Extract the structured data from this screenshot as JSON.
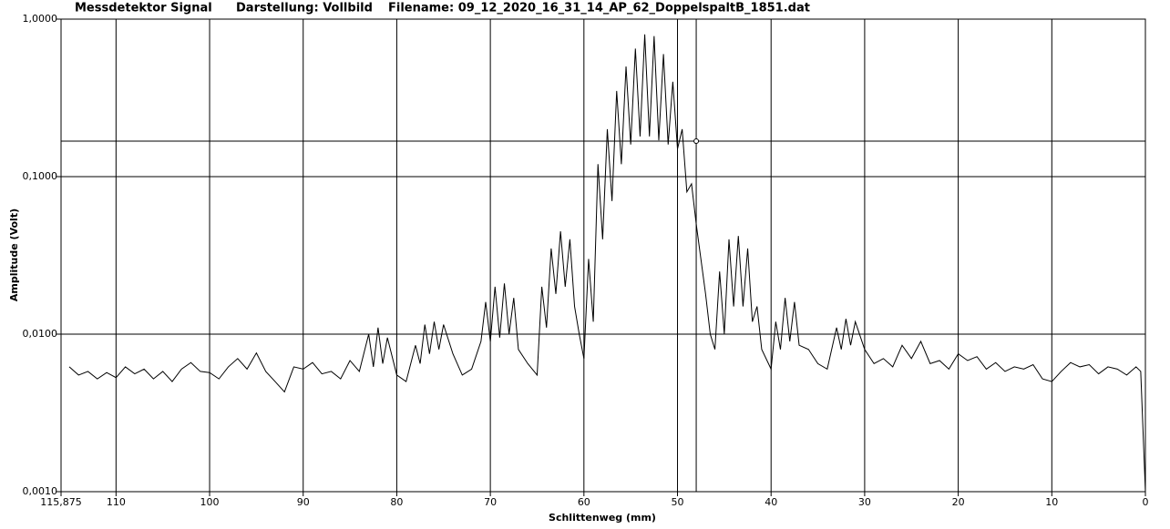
{
  "chart_data": {
    "type": "line",
    "header": [
      "Messdetektor Signal",
      "Darstellung: Vollbild",
      "Filename: 09_12_2020_16_31_14_AP_62_DoppelspaltB_1851.dat"
    ],
    "xlabel": "Schlittenweg (mm)",
    "ylabel": "Amplitude (Volt)",
    "xlim": [
      115.875,
      0
    ],
    "ylim": [
      0.001,
      1
    ],
    "log_y": true,
    "grid": true,
    "xticks": [
      {
        "value": 115.875,
        "label": "115,875"
      },
      110,
      100,
      90,
      80,
      70,
      60,
      50,
      40,
      30,
      20,
      10,
      0
    ],
    "yticks": [
      {
        "value": 0.001,
        "label": "0,0010"
      },
      {
        "value": 0.01,
        "label": "0,0100"
      },
      {
        "value": 0.1,
        "label": "0,1000"
      },
      {
        "value": 1,
        "label": "1,0000"
      }
    ],
    "cursor": {
      "x": 48,
      "y": 0.168
    },
    "x": [
      115,
      114,
      113,
      112,
      111,
      110,
      109,
      108,
      107,
      106,
      105,
      104,
      103,
      102,
      101,
      100,
      99,
      98,
      97,
      96,
      95,
      94,
      93,
      92,
      91,
      90,
      89,
      88,
      87,
      86,
      85,
      84,
      83,
      82.5,
      82,
      81.5,
      81,
      80,
      79,
      78,
      77.5,
      77,
      76.5,
      76,
      75.5,
      75,
      74,
      73,
      72,
      71,
      70.5,
      70,
      69.5,
      69,
      68.5,
      68,
      67.5,
      67,
      66,
      65,
      64.5,
      64,
      63.5,
      63,
      62.5,
      62,
      61.5,
      61,
      60.5,
      60,
      59.5,
      59,
      58.5,
      58,
      57.5,
      57,
      56.5,
      56,
      55.5,
      55,
      54.5,
      54,
      53.5,
      53,
      52.5,
      52,
      51.5,
      51,
      50.5,
      50,
      49.5,
      49,
      48.5,
      48,
      47.5,
      47,
      46.5,
      46,
      45.5,
      45,
      44.5,
      44,
      43.5,
      43,
      42.5,
      42,
      41.5,
      41,
      40,
      39.5,
      39,
      38.5,
      38,
      37.5,
      37,
      36,
      35,
      34,
      33,
      32.5,
      32,
      31.5,
      31,
      30,
      29,
      28,
      27,
      26,
      25,
      24,
      23,
      22,
      21,
      20,
      19,
      18,
      17,
      16,
      15,
      14,
      13,
      12,
      11,
      10,
      9,
      8,
      7,
      6,
      5,
      4,
      3,
      2,
      1,
      0.5,
      0
    ],
    "series": [
      {
        "color": "#000000",
        "values": [
          0.0062,
          0.0055,
          0.0058,
          0.0052,
          0.0057,
          0.0053,
          0.0062,
          0.0056,
          0.006,
          0.0052,
          0.0058,
          0.005,
          0.006,
          0.0066,
          0.0058,
          0.0057,
          0.0052,
          0.0062,
          0.007,
          0.006,
          0.0076,
          0.0058,
          0.005,
          0.0043,
          0.0062,
          0.006,
          0.0066,
          0.0056,
          0.0058,
          0.0052,
          0.0068,
          0.0058,
          0.01,
          0.0062,
          0.011,
          0.0065,
          0.0095,
          0.0055,
          0.005,
          0.0085,
          0.0065,
          0.0115,
          0.0075,
          0.012,
          0.008,
          0.0115,
          0.0075,
          0.0055,
          0.006,
          0.009,
          0.016,
          0.009,
          0.02,
          0.0095,
          0.021,
          0.01,
          0.017,
          0.008,
          0.0065,
          0.0055,
          0.02,
          0.011,
          0.035,
          0.018,
          0.045,
          0.02,
          0.04,
          0.015,
          0.01,
          0.007,
          0.03,
          0.012,
          0.12,
          0.04,
          0.2,
          0.07,
          0.35,
          0.12,
          0.5,
          0.16,
          0.65,
          0.18,
          0.8,
          0.18,
          0.78,
          0.17,
          0.6,
          0.16,
          0.4,
          0.15,
          0.2,
          0.08,
          0.09,
          0.05,
          0.03,
          0.018,
          0.01,
          0.008,
          0.025,
          0.01,
          0.04,
          0.015,
          0.042,
          0.015,
          0.035,
          0.012,
          0.015,
          0.008,
          0.006,
          0.012,
          0.008,
          0.017,
          0.009,
          0.016,
          0.0085,
          0.008,
          0.0065,
          0.006,
          0.011,
          0.008,
          0.0125,
          0.0085,
          0.012,
          0.008,
          0.0065,
          0.007,
          0.0062,
          0.0085,
          0.007,
          0.009,
          0.0065,
          0.0068,
          0.006,
          0.0075,
          0.0068,
          0.0072,
          0.006,
          0.0066,
          0.0058,
          0.0062,
          0.006,
          0.0064,
          0.0052,
          0.005,
          0.0058,
          0.0066,
          0.0062,
          0.0064,
          0.0056,
          0.0062,
          0.006,
          0.0055,
          0.0062,
          0.0058,
          0.001
        ]
      }
    ]
  }
}
